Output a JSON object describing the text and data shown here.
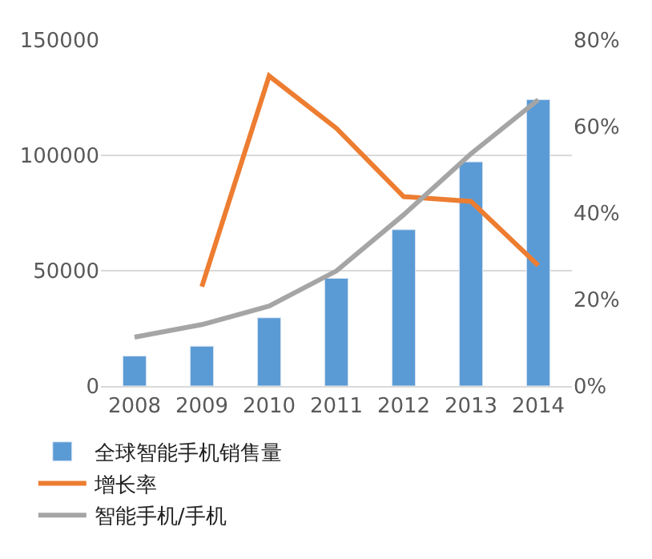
{
  "chart_data": {
    "type": "bar",
    "categories": [
      "2008",
      "2009",
      "2010",
      "2011",
      "2012",
      "2013",
      "2014"
    ],
    "series": [
      {
        "name": "全球智能手机销售量",
        "color": "#5b9bd5",
        "values": [
          13000,
          17300,
          29600,
          46700,
          67800,
          97200,
          124200
        ]
      },
      {
        "name": "增长率",
        "type": "line",
        "axis": "y2",
        "color": "#ed7d31",
        "values": [
          null,
          23,
          71.7,
          59.6,
          43.8,
          42.7,
          27.9
        ]
      },
      {
        "name": "智能手机/手机",
        "type": "line",
        "axis": "y2",
        "color": "#a5a5a5",
        "values": [
          11.3,
          14.2,
          18.5,
          26.6,
          39.6,
          53.7,
          66.2
        ]
      }
    ],
    "ylim": [
      0,
      150000
    ],
    "yticks": [
      0,
      50000,
      100000,
      150000
    ],
    "y2lim": [
      0,
      80
    ],
    "y2ticks": [
      {
        "value": 0,
        "label": "0%"
      },
      {
        "value": 20,
        "label": "20%"
      },
      {
        "value": 40,
        "label": "40%"
      },
      {
        "value": 60,
        "label": "60%"
      },
      {
        "value": 80,
        "label": "80%"
      }
    ],
    "grid": "y",
    "legend": "bottom",
    "marker": "none",
    "line_style": "solid"
  }
}
